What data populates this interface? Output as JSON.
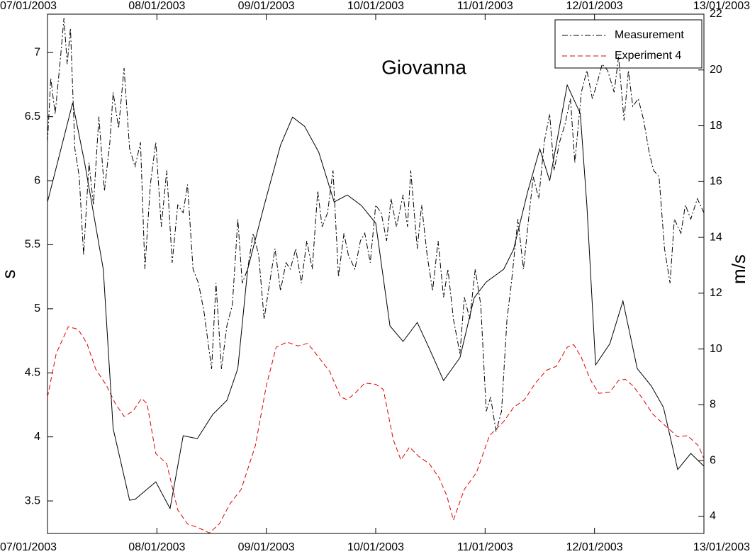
{
  "chart_data": {
    "type": "line",
    "title": "Giovanna",
    "ylabel": "s",
    "y2label": "m/s",
    "xlim": [
      7,
      13
    ],
    "xticks": [
      {
        "value": 7,
        "label": "07/01/2003"
      },
      {
        "value": 8,
        "label": "08/01/2003"
      },
      {
        "value": 9,
        "label": "09/01/2003"
      },
      {
        "value": 10,
        "label": "10/01/2003"
      },
      {
        "value": 11,
        "label": "11/01/2003"
      },
      {
        "value": 12,
        "label": "12/01/2003"
      },
      {
        "value": 13,
        "label": "13/01/2003"
      }
    ],
    "ylim": [
      3.246,
      7.3
    ],
    "yticks": [
      3.5,
      4,
      4.5,
      5,
      5.5,
      6,
      6.5,
      7
    ],
    "y2lim": [
      3.39,
      22
    ],
    "y2ticks": [
      4,
      6,
      8,
      10,
      12,
      14,
      16,
      18,
      20,
      22
    ],
    "legend": "upper right",
    "series": [
      {
        "name": "Measurement",
        "color": "#000000",
        "line_style": "dashdot",
        "x": [
          7.0,
          7.03,
          7.07,
          7.12,
          7.15,
          7.18,
          7.21,
          7.25,
          7.29,
          7.33,
          7.38,
          7.42,
          7.47,
          7.52,
          7.57,
          7.6,
          7.65,
          7.7,
          7.75,
          7.8,
          7.85,
          7.89,
          7.94,
          7.99,
          8.04,
          8.09,
          8.14,
          8.19,
          8.24,
          8.28,
          8.33,
          8.38,
          8.43,
          8.5,
          8.54,
          8.59,
          8.64,
          8.69,
          8.74,
          8.78,
          8.83,
          8.88,
          8.93,
          8.98,
          9.03,
          9.08,
          9.13,
          9.18,
          9.22,
          9.27,
          9.32,
          9.37,
          9.42,
          9.47,
          9.51,
          9.56,
          9.61,
          9.66,
          9.71,
          9.75,
          9.81,
          9.86,
          9.9,
          9.95,
          10.0,
          10.05,
          10.1,
          10.14,
          10.19,
          10.25,
          10.29,
          10.32,
          10.38,
          10.42,
          10.47,
          10.52,
          10.57,
          10.62,
          10.66,
          10.71,
          10.77,
          10.81,
          10.86,
          10.91,
          10.96,
          11.01,
          11.05,
          11.1,
          11.15,
          11.2,
          11.24,
          11.3,
          11.35,
          11.39,
          11.44,
          11.49,
          11.54,
          11.59,
          11.63,
          11.68,
          11.73,
          11.78,
          11.82,
          11.88,
          11.93,
          11.98,
          12.02,
          12.07,
          12.12,
          12.18,
          12.22,
          12.27,
          12.31,
          12.35,
          12.4,
          12.45,
          12.5,
          12.54,
          12.59,
          12.64,
          12.69,
          12.73,
          12.79,
          12.83,
          12.88,
          12.94,
          13.0
        ],
        "values": [
          6.3,
          6.8,
          6.52,
          6.97,
          7.27,
          6.91,
          7.19,
          6.25,
          6.03,
          5.42,
          6.14,
          5.81,
          6.5,
          5.92,
          6.3,
          6.69,
          6.41,
          6.88,
          6.25,
          6.11,
          6.3,
          5.31,
          5.97,
          6.3,
          5.64,
          6.08,
          5.36,
          5.81,
          5.75,
          5.97,
          5.31,
          5.2,
          4.98,
          4.53,
          5.2,
          4.53,
          4.87,
          5.03,
          5.7,
          5.2,
          5.31,
          5.59,
          5.42,
          4.92,
          5.2,
          5.47,
          5.14,
          5.36,
          5.31,
          5.47,
          5.2,
          5.53,
          5.31,
          5.92,
          5.64,
          5.75,
          6.08,
          5.25,
          5.59,
          5.42,
          5.31,
          5.53,
          5.59,
          5.36,
          5.81,
          5.75,
          5.53,
          5.86,
          5.64,
          5.89,
          5.64,
          6.08,
          5.47,
          5.81,
          5.42,
          5.14,
          5.53,
          5.09,
          5.31,
          4.92,
          4.65,
          5.09,
          4.92,
          5.31,
          5.03,
          4.2,
          4.31,
          4.04,
          4.2,
          4.92,
          5.2,
          5.7,
          5.31,
          5.64,
          6.03,
          5.86,
          6.3,
          6.52,
          6.08,
          6.3,
          6.44,
          6.64,
          6.14,
          6.69,
          6.86,
          6.64,
          6.75,
          6.91,
          6.86,
          6.69,
          6.97,
          6.47,
          6.86,
          6.58,
          6.64,
          6.47,
          6.22,
          6.08,
          6.03,
          5.47,
          5.2,
          5.7,
          5.59,
          5.81,
          5.7,
          5.86,
          5.75
        ]
      },
      {
        "name": "Experiment 4",
        "color": "#dd0000",
        "line_style": "dashed",
        "x": [
          7.0,
          7.08,
          7.19,
          7.28,
          7.36,
          7.44,
          7.54,
          7.62,
          7.7,
          7.78,
          7.86,
          7.91,
          7.99,
          8.09,
          8.19,
          8.28,
          8.38,
          8.48,
          8.57,
          8.67,
          8.77,
          8.9,
          9.0,
          9.09,
          9.19,
          9.29,
          9.38,
          9.48,
          9.58,
          9.68,
          9.74,
          9.81,
          9.9,
          10.0,
          10.07,
          10.16,
          10.23,
          10.31,
          10.39,
          10.49,
          10.58,
          10.65,
          10.71,
          10.81,
          10.92,
          11.04,
          11.17,
          11.26,
          11.36,
          11.46,
          11.56,
          11.65,
          11.75,
          11.81,
          11.88,
          11.96,
          12.04,
          12.14,
          12.22,
          12.28,
          12.35,
          12.43,
          12.53,
          12.63,
          12.76,
          12.85,
          12.95,
          13.0
        ],
        "values": [
          4.31,
          4.65,
          4.86,
          4.84,
          4.73,
          4.53,
          4.4,
          4.26,
          4.16,
          4.2,
          4.3,
          4.26,
          3.87,
          3.79,
          3.43,
          3.32,
          3.29,
          3.25,
          3.32,
          3.48,
          3.59,
          3.93,
          4.4,
          4.7,
          4.74,
          4.71,
          4.73,
          4.62,
          4.51,
          4.31,
          4.29,
          4.34,
          4.42,
          4.41,
          4.37,
          3.98,
          3.82,
          3.92,
          3.85,
          3.79,
          3.68,
          3.54,
          3.35,
          3.59,
          3.72,
          4.01,
          4.12,
          4.23,
          4.29,
          4.42,
          4.52,
          4.55,
          4.7,
          4.72,
          4.62,
          4.45,
          4.34,
          4.35,
          4.44,
          4.45,
          4.4,
          4.31,
          4.18,
          4.1,
          4.0,
          4.01,
          3.93,
          3.83
        ]
      },
      {
        "color": "#000000",
        "line_style": "solid",
        "axis": "y2",
        "x": [
          7.0,
          7.23,
          7.34,
          7.51,
          7.6,
          7.75,
          7.8,
          7.99,
          8.12,
          8.24,
          8.37,
          8.51,
          8.64,
          8.74,
          8.83,
          8.98,
          9.13,
          9.24,
          9.35,
          9.48,
          9.62,
          9.74,
          9.87,
          10.0,
          10.13,
          10.25,
          10.38,
          10.49,
          10.62,
          10.77,
          10.9,
          11.01,
          11.17,
          11.26,
          11.39,
          11.5,
          11.59,
          11.75,
          11.87,
          11.93,
          12.01,
          12.14,
          12.26,
          12.39,
          12.52,
          12.63,
          12.76,
          12.88,
          13.0
        ],
        "values": [
          15.27,
          18.82,
          16.66,
          12.86,
          7.15,
          4.58,
          4.61,
          5.24,
          4.28,
          6.89,
          6.79,
          7.65,
          8.16,
          9.3,
          12.86,
          15.14,
          17.3,
          18.31,
          17.98,
          17.05,
          15.27,
          15.52,
          15.14,
          14.51,
          10.83,
          10.27,
          10.95,
          10.02,
          8.87,
          9.69,
          11.84,
          12.4,
          12.86,
          13.57,
          15.65,
          17.17,
          16.03,
          19.46,
          18.44,
          15.14,
          9.43,
          10.19,
          11.72,
          9.3,
          8.67,
          7.91,
          5.68,
          6.26,
          5.8
        ]
      }
    ]
  }
}
